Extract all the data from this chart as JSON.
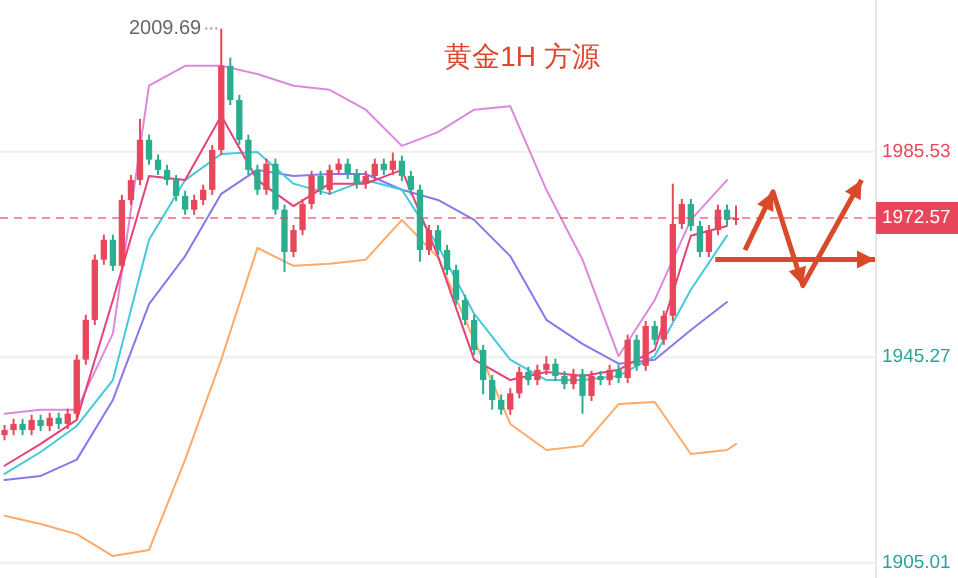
{
  "chart_data": {
    "type": "candlestick",
    "title": "黄金1H 方源",
    "categories": [
      null,
      null,
      null,
      null,
      null,
      null,
      null,
      null,
      null,
      null,
      null,
      null,
      null,
      null,
      null,
      null,
      null,
      null,
      null,
      null,
      null,
      null,
      null,
      null,
      null,
      null,
      null,
      null,
      null,
      null,
      null,
      null,
      null,
      null,
      null,
      null,
      null,
      null,
      null,
      null,
      null,
      null,
      null,
      null,
      null,
      null,
      null,
      null,
      null,
      null,
      null,
      null,
      null,
      null,
      null,
      null,
      null,
      null,
      null,
      null,
      null,
      null,
      null,
      null,
      null,
      null,
      null,
      null,
      null,
      null,
      null,
      null,
      null,
      null,
      null,
      null,
      null,
      null,
      null,
      null,
      null,
      null,
      null,
      null,
      null,
      null,
      null,
      null,
      null,
      null,
      null,
      null,
      null,
      null,
      null,
      null,
      null
    ],
    "ohlc": [
      [
        1930.0,
        1932.0,
        1929.0,
        1931.0
      ],
      [
        1931.0,
        1933.2,
        1930.0,
        1932.2
      ],
      [
        1932.2,
        1933.2,
        1930.0,
        1931.0
      ],
      [
        1931.0,
        1934.0,
        1930.0,
        1933.0
      ],
      [
        1933.0,
        1934.0,
        1930.8,
        1931.8
      ],
      [
        1931.8,
        1934.4,
        1930.8,
        1933.4
      ],
      [
        1933.4,
        1934.4,
        1931.2,
        1932.2
      ],
      [
        1932.2,
        1935.2,
        1931.2,
        1934.2
      ],
      [
        1934.2,
        1945.8,
        1933.2,
        1944.8
      ],
      [
        1944.8,
        1953.6,
        1943.8,
        1952.6
      ],
      [
        1952.6,
        1965.4,
        1951.6,
        1964.4
      ],
      [
        1964.4,
        1969.3,
        1963.4,
        1968.3
      ],
      [
        1968.3,
        1969.3,
        1962.2,
        1963.2
      ],
      [
        1963.2,
        1977.1,
        1962.2,
        1976.1
      ],
      [
        1976.1,
        1981.0,
        1975.1,
        1980.0
      ],
      [
        1980.0,
        1992.0,
        1979.0,
        1987.9
      ],
      [
        1987.9,
        1988.9,
        1983.0,
        1984.0
      ],
      [
        1984.0,
        1985.0,
        1981.0,
        1982.0
      ],
      [
        1982.0,
        1983.0,
        1979.0,
        1980.0
      ],
      [
        1980.0,
        1981.0,
        1975.9,
        1976.9
      ],
      [
        1976.9,
        1977.9,
        1973.2,
        1974.2
      ],
      [
        1974.2,
        1977.1,
        1973.2,
        1976.1
      ],
      [
        1976.1,
        1979.1,
        1975.1,
        1978.1
      ],
      [
        1978.1,
        1986.9,
        1977.1,
        1985.9
      ],
      [
        1985.9,
        2009.69,
        1984.9,
        2002.4
      ],
      [
        2002.4,
        2004.0,
        1994.7,
        1995.7
      ],
      [
        1995.7,
        1996.7,
        1986.9,
        1987.9
      ],
      [
        1987.9,
        1988.9,
        1981.0,
        1982.0
      ],
      [
        1982.0,
        1983.0,
        1977.1,
        1978.1
      ],
      [
        1978.1,
        1984.2,
        1977.1,
        1983.2
      ],
      [
        1983.2,
        1984.2,
        1973.2,
        1974.2
      ],
      [
        1974.2,
        1975.2,
        1962.0,
        1965.9
      ],
      [
        1965.9,
        1971.2,
        1964.9,
        1970.2
      ],
      [
        1970.2,
        1976.3,
        1969.2,
        1975.3
      ],
      [
        1975.3,
        1981.8,
        1974.3,
        1980.8
      ],
      [
        1980.8,
        1981.8,
        1977.1,
        1978.1
      ],
      [
        1978.1,
        1983.0,
        1977.1,
        1982.0
      ],
      [
        1982.0,
        1984.2,
        1981.0,
        1983.2
      ],
      [
        1983.2,
        1984.2,
        1980.2,
        1981.2
      ],
      [
        1981.2,
        1982.2,
        1978.3,
        1979.3
      ],
      [
        1979.3,
        1981.8,
        1978.3,
        1980.8
      ],
      [
        1980.8,
        1984.2,
        1979.8,
        1983.2
      ],
      [
        1983.2,
        1984.2,
        1981.0,
        1982.0
      ],
      [
        1982.0,
        1985.4,
        1981.0,
        1983.8
      ],
      [
        1983.8,
        1984.8,
        1979.8,
        1980.8
      ],
      [
        1980.8,
        1981.8,
        1977.1,
        1978.1
      ],
      [
        1978.1,
        1979.1,
        1964.0,
        1966.3
      ],
      [
        1966.3,
        1971.2,
        1965.3,
        1970.2
      ],
      [
        1970.2,
        1971.2,
        1965.3,
        1966.3
      ],
      [
        1966.3,
        1967.3,
        1961.4,
        1962.4
      ],
      [
        1962.4,
        1963.4,
        1955.5,
        1956.5
      ],
      [
        1956.5,
        1957.5,
        1951.6,
        1952.6
      ],
      [
        1952.6,
        1953.6,
        1945.7,
        1946.7
      ],
      [
        1946.7,
        1947.7,
        1938.0,
        1940.8
      ],
      [
        1940.8,
        1941.8,
        1935.0,
        1936.9
      ],
      [
        1936.9,
        1938.0,
        1934.0,
        1935.0
      ],
      [
        1935.0,
        1939.2,
        1934.0,
        1938.2
      ],
      [
        1938.2,
        1943.4,
        1937.2,
        1942.4
      ],
      [
        1942.4,
        1943.4,
        1939.8,
        1940.8
      ],
      [
        1940.8,
        1943.8,
        1939.8,
        1942.8
      ],
      [
        1942.8,
        1945.5,
        1941.8,
        1944.0
      ],
      [
        1944.0,
        1945.0,
        1940.6,
        1941.6
      ],
      [
        1941.6,
        1942.6,
        1939.0,
        1940.0
      ],
      [
        1940.0,
        1943.0,
        1939.0,
        1942.0
      ],
      [
        1942.0,
        1943.0,
        1934.2,
        1937.7
      ],
      [
        1937.7,
        1942.6,
        1936.7,
        1941.6
      ],
      [
        1941.6,
        1942.6,
        1939.8,
        1940.8
      ],
      [
        1940.8,
        1943.8,
        1939.8,
        1942.8
      ],
      [
        1942.8,
        1943.8,
        1940.2,
        1941.2
      ],
      [
        1941.2,
        1949.7,
        1940.2,
        1948.7
      ],
      [
        1948.7,
        1949.7,
        1942.6,
        1943.6
      ],
      [
        1943.6,
        1952.4,
        1942.6,
        1951.4
      ],
      [
        1951.4,
        1952.4,
        1947.7,
        1948.7
      ],
      [
        1948.7,
        1954.4,
        1947.7,
        1953.4
      ],
      [
        1953.4,
        1979.3,
        1952.4,
        1971.4
      ],
      [
        1971.4,
        1976.3,
        1970.4,
        1975.3
      ],
      [
        1975.3,
        1976.3,
        1970.0,
        1971.0
      ],
      [
        1971.0,
        1972.0,
        1964.9,
        1965.9
      ],
      [
        1965.9,
        1971.2,
        1964.9,
        1970.2
      ],
      [
        1970.2,
        1975.2,
        1969.2,
        1974.2
      ],
      [
        1974.2,
        1975.2,
        1971.2,
        1972.2
      ],
      [
        1972.2,
        1975.0,
        1971.2,
        1972.57
      ],
      null,
      null,
      null,
      null,
      null,
      null,
      null,
      null,
      null,
      null,
      null,
      null,
      null,
      null,
      null
    ],
    "colors": [
      "#e8475b",
      "#e8475b",
      "#2bae8f",
      "#e8475b",
      "#2bae8f",
      "#e8475b",
      "#2bae8f",
      "#e8475b",
      "#e8475b",
      "#e8475b",
      "#e8475b",
      "#e8475b",
      "#2bae8f",
      "#e8475b",
      "#e8475b",
      "#e8475b",
      "#2bae8f",
      "#2bae8f",
      "#2bae8f",
      "#2bae8f",
      "#2bae8f",
      "#e8475b",
      "#e8475b",
      "#e8475b",
      "#e8475b",
      "#2bae8f",
      "#2bae8f",
      "#2bae8f",
      "#2bae8f",
      "#e8475b",
      "#2bae8f",
      "#2bae8f",
      "#e8475b",
      "#e8475b",
      "#e8475b",
      "#2bae8f",
      "#e8475b",
      "#e8475b",
      "#2bae8f",
      "#2bae8f",
      "#e8475b",
      "#e8475b",
      "#2bae8f",
      "#e8475b",
      "#2bae8f",
      "#2bae8f",
      "#2bae8f",
      "#e8475b",
      "#2bae8f",
      "#2bae8f",
      "#2bae8f",
      "#2bae8f",
      "#2bae8f",
      "#2bae8f",
      "#2bae8f",
      "#2bae8f",
      "#e8475b",
      "#e8475b",
      "#2bae8f",
      "#e8475b",
      "#e8475b",
      "#2bae8f",
      "#2bae8f",
      "#e8475b",
      "#2bae8f",
      "#e8475b",
      "#2bae8f",
      "#e8475b",
      "#2bae8f",
      "#e8475b",
      "#2bae8f",
      "#e8475b",
      "#2bae8f",
      "#e8475b",
      "#e8475b",
      "#e8475b",
      "#2bae8f",
      "#2bae8f",
      "#e8475b",
      "#e8475b",
      "#2bae8f",
      "#e8475b",
      null,
      null,
      null,
      null,
      null,
      null,
      null,
      null,
      null,
      null,
      null,
      null,
      null,
      null,
      null
    ],
    "series": [
      {
        "type": "line",
        "color": "#dd88dd",
        "values": [
          1934.2,
          null,
          null,
          null,
          1935.0,
          null,
          null,
          null,
          1935.0,
          null,
          null,
          null,
          1949.9,
          null,
          null,
          null,
          1998.5,
          null,
          null,
          null,
          2002.4,
          null,
          null,
          null,
          2002.4,
          null,
          null,
          null,
          2000.8,
          null,
          null,
          null,
          1998.5,
          null,
          null,
          null,
          1997.7,
          null,
          null,
          null,
          1993.8,
          null,
          null,
          null,
          1986.7,
          null,
          null,
          null,
          1989.4,
          null,
          null,
          null,
          1993.8,
          null,
          null,
          null,
          1994.5,
          null,
          null,
          null,
          1978.1,
          null,
          null,
          null,
          1964.4,
          null,
          null,
          null,
          1945.5,
          null,
          null,
          null,
          1956.5,
          null,
          null,
          null,
          1972.2,
          null,
          null,
          null,
          1980.0,
          null,
          null,
          null,
          null,
          null,
          null,
          null,
          null,
          null,
          null,
          null,
          null,
          null,
          null,
          null,
          null
        ]
      },
      {
        "type": "line",
        "color": "#ffaa66",
        "values": [
          1914.2,
          null,
          null,
          null,
          1912.6,
          null,
          null,
          null,
          1910.6,
          null,
          null,
          null,
          1906.3,
          null,
          null,
          null,
          1907.5,
          null,
          null,
          null,
          1925.2,
          null,
          null,
          null,
          1944.8,
          null,
          null,
          null,
          1966.7,
          null,
          null,
          null,
          1963.2,
          null,
          null,
          null,
          1963.6,
          null,
          null,
          null,
          1964.4,
          null,
          null,
          null,
          1972.2,
          null,
          null,
          null,
          1964.8,
          null,
          null,
          null,
          1948.7,
          null,
          null,
          null,
          1932.2,
          null,
          null,
          null,
          1927.1,
          null,
          null,
          null,
          1927.9,
          null,
          null,
          null,
          1936.1,
          null,
          null,
          null,
          1936.5,
          null,
          null,
          null,
          1926.3,
          null,
          null,
          null,
          1927.1,
          1928.3,
          null,
          null,
          null,
          null,
          null,
          null,
          null,
          null,
          null,
          null,
          null,
          null,
          null,
          null,
          null
        ]
      },
      {
        "type": "line",
        "color": "#8877ee",
        "values": [
          1921.2,
          null,
          null,
          null,
          1922.0,
          null,
          null,
          null,
          1925.2,
          null,
          null,
          null,
          1936.9,
          null,
          null,
          null,
          1955.7,
          null,
          null,
          null,
          1965.1,
          null,
          null,
          null,
          1977.3,
          null,
          null,
          null,
          1982.0,
          null,
          null,
          null,
          1980.8,
          null,
          null,
          null,
          1981.2,
          null,
          null,
          null,
          1981.2,
          null,
          null,
          null,
          1978.1,
          null,
          null,
          null,
          1976.1,
          null,
          null,
          null,
          1972.2,
          null,
          null,
          null,
          1965.1,
          null,
          null,
          null,
          1952.6,
          null,
          null,
          null,
          1947.9,
          null,
          null,
          null,
          1944.0,
          null,
          null,
          null,
          1944.8,
          null,
          null,
          null,
          1950.6,
          null,
          null,
          null,
          1956.1,
          null,
          null,
          null,
          null,
          null,
          null,
          null,
          null,
          null,
          null,
          null,
          null,
          null,
          null,
          null,
          null
        ]
      },
      {
        "type": "line",
        "color": "#44c8dd",
        "values": [
          1922.4,
          null,
          null,
          null,
          1926.7,
          null,
          null,
          null,
          1931.8,
          null,
          null,
          null,
          1940.8,
          null,
          null,
          null,
          1968.3,
          null,
          null,
          null,
          1980.0,
          null,
          null,
          null,
          1985.1,
          null,
          null,
          null,
          1985.5,
          null,
          null,
          null,
          1979.3,
          null,
          null,
          null,
          1977.3,
          null,
          null,
          null,
          1980.0,
          null,
          null,
          null,
          1978.1,
          null,
          null,
          null,
          1967.1,
          null,
          null,
          null,
          1953.8,
          null,
          null,
          null,
          1944.8,
          null,
          null,
          null,
          1940.8,
          null,
          null,
          null,
          1940.8,
          null,
          null,
          null,
          1941.6,
          null,
          null,
          null,
          1945.5,
          null,
          null,
          null,
          1958.5,
          null,
          null,
          null,
          1969.1,
          null,
          null,
          null,
          null,
          null,
          null,
          null,
          null,
          null,
          null,
          null,
          null,
          null,
          null,
          null,
          null
        ]
      },
      {
        "type": "line",
        "color": "#e8407a",
        "values": [
          1924.0,
          null,
          null,
          null,
          1928.3,
          null,
          null,
          null,
          1933.0,
          null,
          null,
          null,
          1956.5,
          null,
          null,
          null,
          1980.8,
          null,
          null,
          null,
          1980.0,
          null,
          null,
          null,
          1992.6,
          null,
          null,
          null,
          1980.0,
          null,
          null,
          null,
          1974.9,
          null,
          null,
          null,
          1979.3,
          null,
          null,
          null,
          1979.3,
          null,
          null,
          null,
          1982.0,
          null,
          null,
          null,
          1965.1,
          null,
          null,
          null,
          1944.8,
          null,
          null,
          null,
          1940.8,
          null,
          null,
          null,
          1942.4,
          null,
          null,
          null,
          1941.6,
          null,
          null,
          null,
          1942.8,
          null,
          null,
          null,
          1946.7,
          null,
          null,
          null,
          1969.1,
          null,
          null,
          null,
          1971.0,
          null,
          null,
          null,
          null,
          null,
          null,
          null,
          null,
          null,
          null,
          null,
          null,
          null,
          null,
          null,
          null
        ]
      }
    ],
    "ylim": [
      1902.0,
      2015.3
    ],
    "yticks": [
      1905.01,
      1945.27,
      1985.53
    ],
    "tick_labels": "y",
    "grid": "y",
    "ref_lines": [
      {
        "axis": "y",
        "value": 1972.57,
        "label": "1972.57",
        "color": "#e8475b",
        "line_style": "dashed"
      }
    ],
    "annotations": [
      "2009.69"
    ]
  }
}
